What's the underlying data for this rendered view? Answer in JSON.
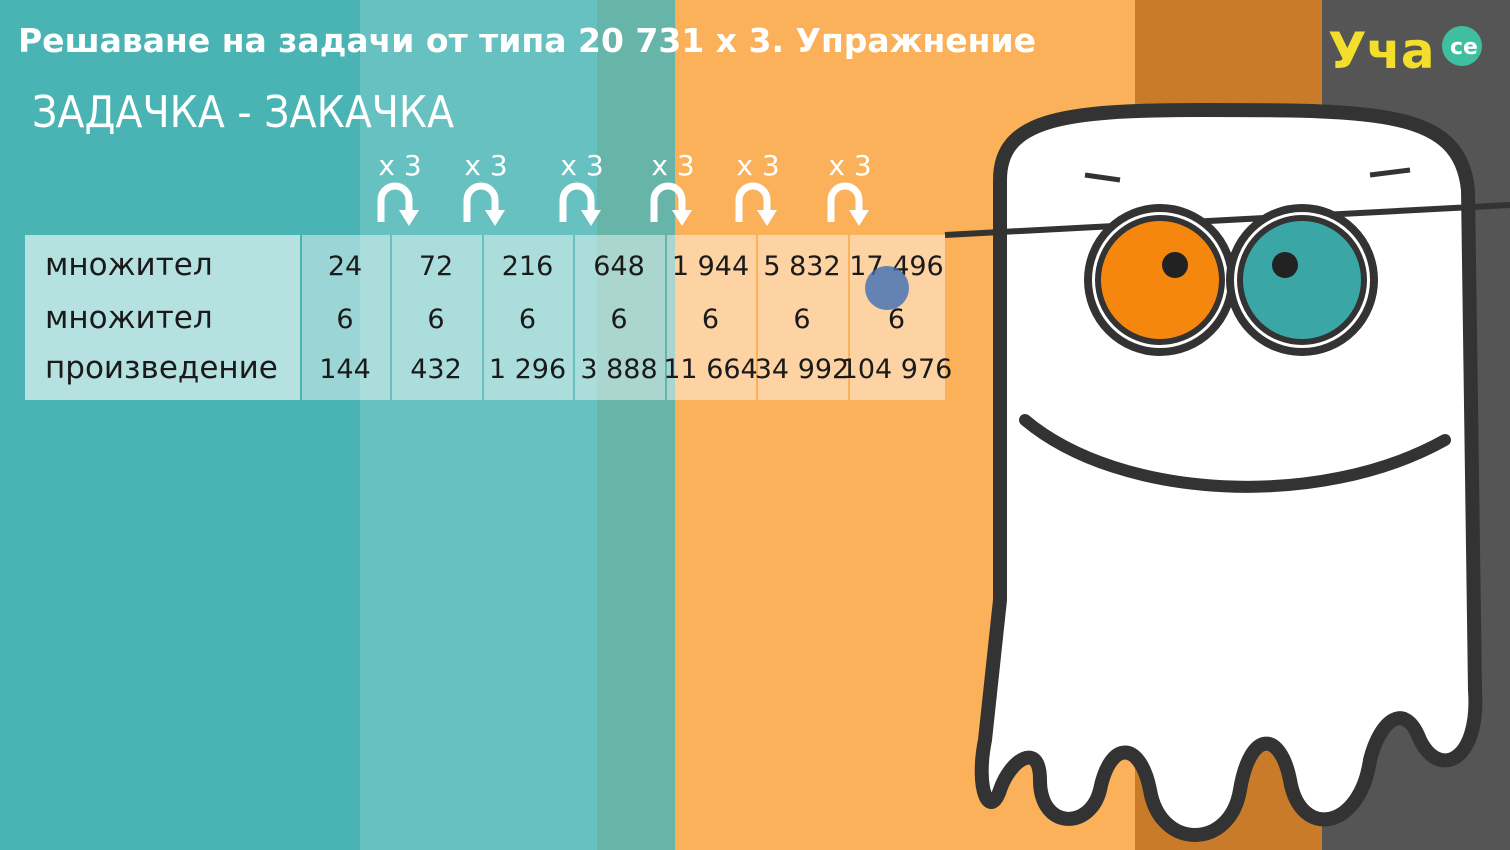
{
  "header": {
    "title": "Решаване на задачи от типа 20 731 х 3. Упражнение",
    "logo": "Уча",
    "logo_badge": "се"
  },
  "subtitle": "ЗАДАЧКА - ЗАКАЧКА",
  "operations": [
    "x 3",
    "x 3",
    "x 3",
    "x 3",
    "x 3",
    "x 3"
  ],
  "table": {
    "rows": [
      [
        "множител",
        "24",
        "72",
        "216",
        "648",
        "1 944",
        "5 832",
        "17 496"
      ],
      [
        "множител",
        "6",
        "6",
        "6",
        "6",
        "6",
        "6",
        "6"
      ],
      [
        "произведение",
        "144",
        "432",
        "1 296",
        "3 888",
        "11 664",
        "34 992",
        "104 976"
      ]
    ]
  }
}
